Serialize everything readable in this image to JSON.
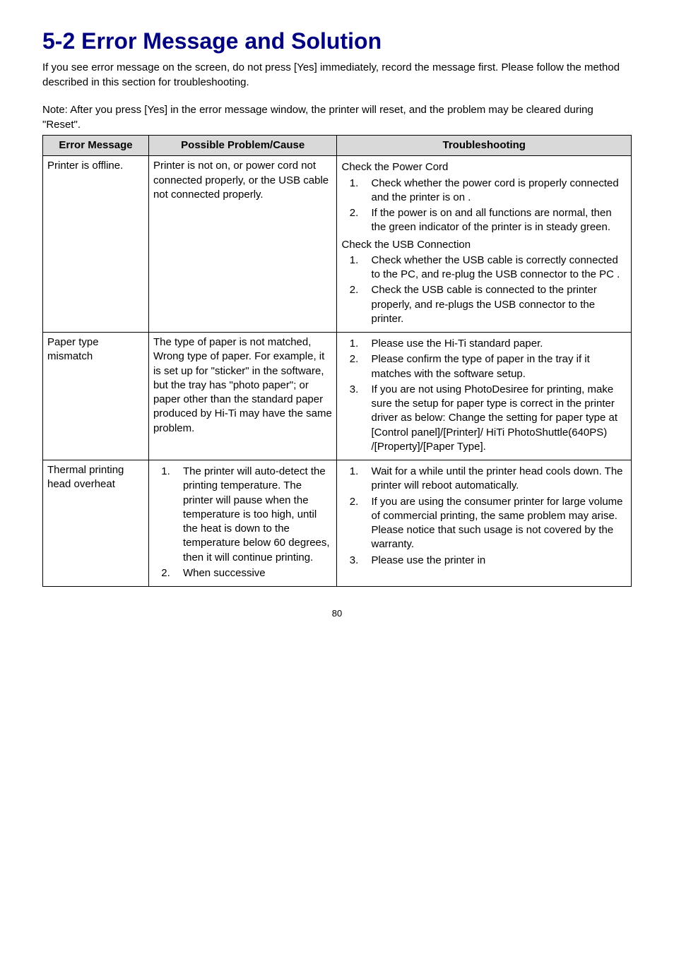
{
  "title": "5-2  Error Message and Solution",
  "intro": "If you see error message on the screen, do not press [Yes] immediately, record the message first.   Please follow the method described in this section for troubleshooting.",
  "note": "Note: After you press [Yes] in the error message window, the printer will reset, and the problem may be cleared during \"Reset\".",
  "headers": {
    "col1": "Error Message",
    "col2": "Possible Problem/Cause",
    "col3": "Troubleshooting"
  },
  "row1": {
    "error": "Printer is offline.",
    "cause": "Printer is not on, or power cord not connected properly, or the USB cable not connected properly.",
    "section1_title": "Check the Power Cord",
    "s1_item1": "Check whether the power cord is properly connected and the printer is on .",
    "s1_item2": "If the power is on and all functions are normal, then the green indicator of the printer is in steady green.",
    "section2_title": "Check the USB Connection",
    "s2_item1": "Check whether the USB cable is correctly connected to the PC, and re-plug the USB connector to the PC .",
    "s2_item2": "Check the USB cable is connected to the printer properly, and re-plugs the USB connector to the printer."
  },
  "row2": {
    "error": "Paper type mismatch",
    "cause": "The type of paper is not matched, Wrong type of paper. For example, it is set up for \"sticker\" in the software, but the tray has \"photo paper\"; or paper other than the standard paper produced by Hi-Ti may have the same problem.",
    "item1": "Please use the Hi-Ti standard paper.",
    "item2": "Please confirm the type of paper in the tray if it matches with the software setup.",
    "item3": "If you are not using PhotoDesiree for printing, make sure the setup for paper type is correct in the printer driver as below: Change the setting for paper type at [Control panel]/[Printer]/ HiTi PhotoShuttle(640PS) /[Property]/[Paper Type]."
  },
  "row3": {
    "error": "Thermal printing head overheat",
    "cause_intro": "",
    "cause_item1": "The printer will auto-detect the printing temperature.   The printer will pause when the temperature is too high, until the heat is down to the temperature below 60 degrees, then it will continue printing.",
    "cause_item2": "When successive",
    "item1": "Wait for a while until the printer head cools down.   The printer will reboot automatically.",
    "item2": "If you are using the consumer printer for large volume of commercial printing, the same problem may arise.   Please notice that such usage is not covered by the warranty.",
    "item3": "Please use the printer in"
  },
  "page_number": "80"
}
